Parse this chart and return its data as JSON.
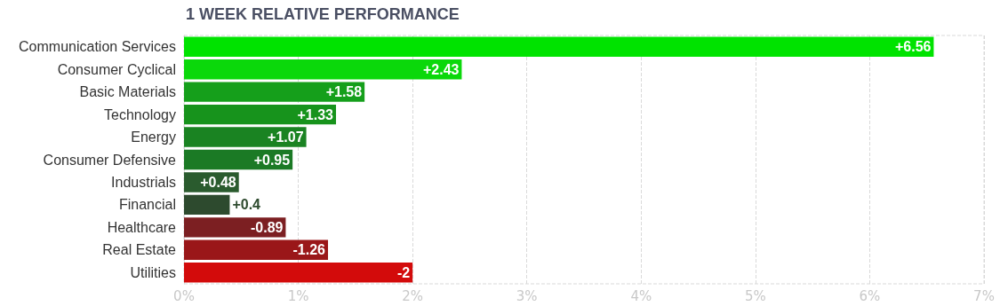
{
  "chart_data": {
    "type": "bar",
    "orientation": "horizontal",
    "title": "1 WEEK RELATIVE PERFORMANCE",
    "categories": [
      "Communication Services",
      "Consumer Cyclical",
      "Basic Materials",
      "Technology",
      "Energy",
      "Consumer Defensive",
      "Industrials",
      "Financial",
      "Healthcare",
      "Real Estate",
      "Utilities"
    ],
    "values": [
      6.56,
      2.43,
      1.58,
      1.33,
      1.07,
      0.95,
      0.48,
      0.4,
      -0.89,
      -1.26,
      -2
    ],
    "base": [
      0,
      0,
      0,
      0,
      0,
      0,
      0,
      0,
      0.89,
      1.26,
      2
    ],
    "value_labels": [
      "+6.56",
      "+2.43",
      "+1.58",
      "+1.33",
      "+1.07",
      "+0.95",
      "+0.48",
      "+0.4",
      "-0.89",
      "-1.26",
      "-2"
    ],
    "colors": [
      "#00e300",
      "#0bd80b",
      "#159f1b",
      "#17931c",
      "#1a8322",
      "#1b7a25",
      "#2a5b2e",
      "#2d4a2e",
      "#7c1f22",
      "#9a1719",
      "#d30b0b"
    ],
    "xlim": [
      0,
      7
    ],
    "xticks": [
      {
        "value": 0,
        "label": "0%"
      },
      {
        "value": 1,
        "label": "1%"
      },
      {
        "value": 2,
        "label": "2%"
      },
      {
        "value": 3,
        "label": "3%"
      },
      {
        "value": 4,
        "label": "4%"
      },
      {
        "value": 5,
        "label": "5%"
      },
      {
        "value": 6,
        "label": "6%"
      },
      {
        "value": 7,
        "label": "7%"
      }
    ],
    "grid": "x"
  }
}
